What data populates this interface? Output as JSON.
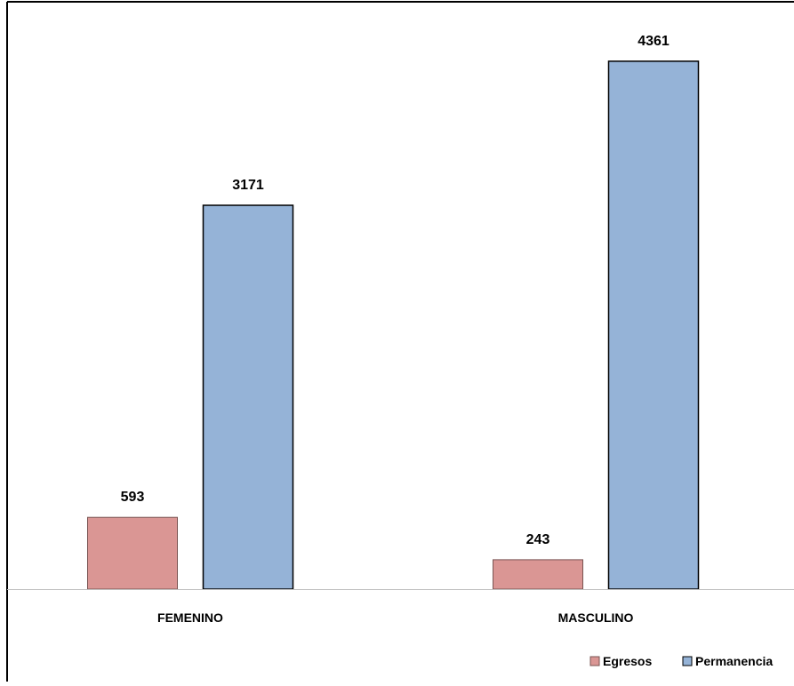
{
  "chart_data": {
    "type": "bar",
    "title": "",
    "categories": [
      "FEMENINO",
      "MASCULINO"
    ],
    "series": [
      {
        "name": "Egresos",
        "values": [
          593,
          243
        ],
        "color": "#DA9694"
      },
      {
        "name": "Permanencia",
        "values": [
          3171,
          4361
        ],
        "color": "#95B3D7"
      }
    ],
    "ylim": [
      0,
      4720
    ],
    "xlabel": "",
    "ylabel": "",
    "grid": false,
    "legend": "bottom-right",
    "data_labels": true
  }
}
